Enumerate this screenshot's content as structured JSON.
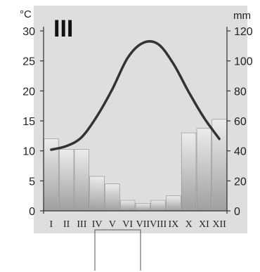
{
  "chart_data": {
    "type": "climatogram",
    "title": "III",
    "left_unit": "°C",
    "right_unit": "mm",
    "months": [
      "I",
      "II",
      "III",
      "IV",
      "V",
      "VI",
      "VII",
      "VIII",
      "IX",
      "X",
      "XI",
      "XII"
    ],
    "temperature": [
      10.2,
      10.8,
      12.3,
      15.8,
      20.3,
      25.5,
      28.0,
      27.8,
      24.5,
      19.8,
      15.5,
      12.0
    ],
    "precipitation": [
      48,
      41,
      41,
      23,
      18,
      7,
      5,
      7,
      10,
      52,
      55,
      61
    ],
    "temp_ylim": [
      0,
      30
    ],
    "precip_ylim": [
      0,
      120
    ],
    "temp_ticks": [
      "0",
      "5",
      "10",
      "15",
      "20",
      "25",
      "30"
    ],
    "precip_ticks": [
      "0",
      "20",
      "40",
      "60",
      "80",
      "100",
      "120"
    ],
    "colors": {
      "background": "#dedede",
      "bar_light": "#ececec",
      "bar_dark": "#9f9f9f",
      "line": "#333333"
    }
  }
}
